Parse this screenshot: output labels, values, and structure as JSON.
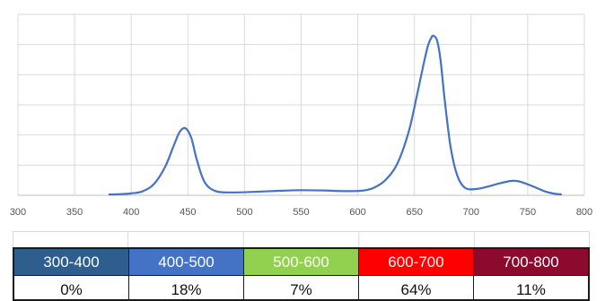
{
  "chart_data": {
    "type": "line",
    "title": "",
    "xlabel": "",
    "ylabel": "",
    "xlim": [
      300,
      800
    ],
    "ylim": [
      0,
      1
    ],
    "x_ticks": [
      300,
      350,
      400,
      450,
      500,
      550,
      600,
      650,
      700,
      750,
      800
    ],
    "grid": true,
    "legend": "none",
    "series": [
      {
        "color": "#4472C4",
        "x": [
          380,
          390,
          400,
          410,
          420,
          430,
          438,
          443,
          448,
          453,
          458,
          465,
          475,
          490,
          510,
          530,
          550,
          570,
          590,
          605,
          615,
          625,
          635,
          645,
          652,
          658,
          662,
          665,
          667,
          670,
          673,
          677,
          682,
          688,
          695,
          705,
          715,
          725,
          735,
          740,
          745,
          755,
          765,
          772,
          780
        ],
        "y": [
          0.005,
          0.007,
          0.012,
          0.025,
          0.07,
          0.18,
          0.32,
          0.4,
          0.42,
          0.36,
          0.22,
          0.08,
          0.025,
          0.018,
          0.022,
          0.028,
          0.032,
          0.03,
          0.026,
          0.03,
          0.05,
          0.1,
          0.2,
          0.4,
          0.62,
          0.82,
          0.94,
          0.99,
          1.0,
          0.97,
          0.85,
          0.58,
          0.3,
          0.12,
          0.045,
          0.04,
          0.055,
          0.075,
          0.09,
          0.09,
          0.082,
          0.055,
          0.025,
          0.012,
          0.005
        ]
      }
    ]
  },
  "band_table": {
    "bands": [
      {
        "range": "300-400",
        "value": "0%",
        "color": "#2E5E8E"
      },
      {
        "range": "400-500",
        "value": "18%",
        "color": "#4472C4"
      },
      {
        "range": "500-600",
        "value": "7%",
        "color": "#92D050"
      },
      {
        "range": "600-700",
        "value": "64%",
        "color": "#FF0000"
      },
      {
        "range": "700-800",
        "value": "11%",
        "color": "#8B0A2E"
      }
    ]
  }
}
